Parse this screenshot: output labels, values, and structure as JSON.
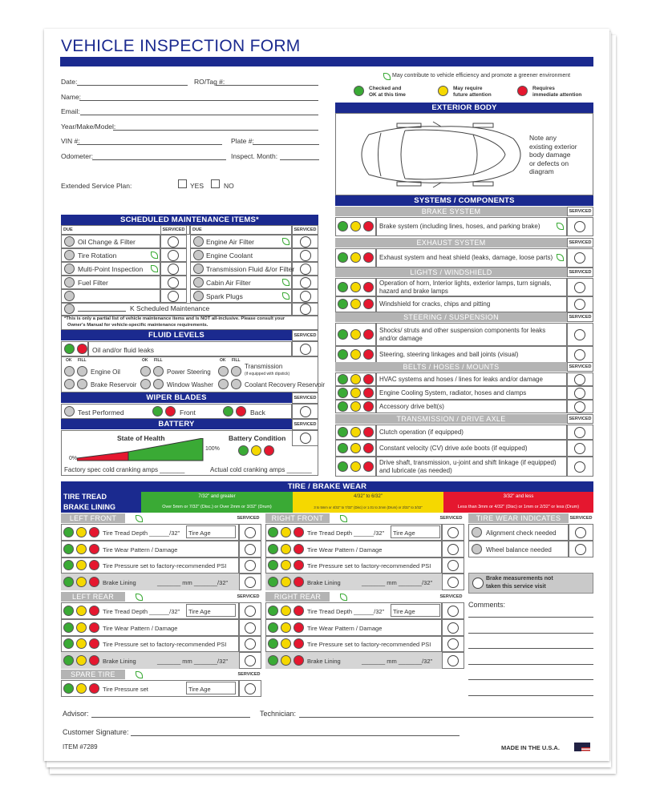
{
  "title": "VEHICLE INSPECTION FORM",
  "colors": {
    "navy": "#1b2a8f",
    "green": "#3aaa35",
    "yellow": "#f5d800",
    "red": "#e5172f",
    "gray": "#c8c8c8"
  },
  "fields": {
    "date": "Date:",
    "ro_tag": "RO/Tag #:",
    "name": "Name:",
    "email": "Email:",
    "year_make_model": "Year/Make/Model:",
    "vin": "VIN #:",
    "plate": "Plate #:",
    "odometer": "Odometer:",
    "inspect_month": "Inspect. Month:",
    "extended_plan": "Extended Service Plan:",
    "yes": "YES",
    "no": "NO"
  },
  "legend": {
    "leaf_note": "May contribute to vehicle efficiency and promote a greener environment",
    "green": [
      "Checked and",
      "OK at this time"
    ],
    "yellow": [
      "May require",
      "future attention"
    ],
    "red": [
      "Requires",
      "immediate attention"
    ]
  },
  "exterior": {
    "header": "EXTERIOR BODY",
    "note": [
      "Note any",
      "existing exterior",
      "body damage",
      "or defects on",
      "diagram"
    ]
  },
  "common": {
    "due": "DUE",
    "serviced": "SERVICED",
    "ok": "OK",
    "fill": "FILL"
  },
  "scheduled": {
    "header": "SCHEDULED MAINTENANCE ITEMS*",
    "left": [
      {
        "label": "Oil Change & Filter",
        "leaf": false
      },
      {
        "label": "Tire Rotation",
        "leaf": true
      },
      {
        "label": "Multi-Point Inspection",
        "leaf": true
      },
      {
        "label": "Fuel Filter",
        "leaf": false
      },
      {
        "label": "",
        "leaf": false
      }
    ],
    "right": [
      {
        "label": "Engine Air Filter",
        "leaf": true
      },
      {
        "label": "Engine Coolant",
        "leaf": false
      },
      {
        "label": "Transmission Fluid &/or Filter",
        "leaf": false
      },
      {
        "label": "Cabin Air Filter",
        "leaf": true
      },
      {
        "label": "Spark Plugs",
        "leaf": true
      }
    ],
    "k_row": "K Scheduled Maintenance",
    "note": [
      "*This is only a partial list of vehicle maintenance items and is NOT all-inclusive. Please consult your",
      "Owner's Manual for vehicle-specific maintenance requirements."
    ]
  },
  "fluid": {
    "header": "FLUID LEVELS",
    "leaks": "Oil and/or fluid leaks",
    "items": [
      "Engine Oil",
      "Brake Reservoir",
      "Power Steering",
      "Window Washer",
      "Transmission",
      "Coolant Recovery Reservoir"
    ],
    "transmission_note": "(if equipped with dipstick)"
  },
  "wiper": {
    "header": "WIPER BLADES",
    "test": "Test Performed",
    "front": "Front",
    "back": "Back"
  },
  "battery": {
    "header": "BATTERY",
    "state_of_health": "State of Health",
    "zero": "0%",
    "hundred": "100%",
    "condition": "Battery Condition",
    "factory": "Factory spec cold cranking amps _______",
    "actual": "Actual cold cranking amps _______"
  },
  "systems": {
    "header": "SYSTEMS / COMPONENTS",
    "groups": [
      {
        "name": "BRAKE SYSTEM",
        "items": [
          {
            "label": [
              "Brake system (including lines, hoses, and parking brake)"
            ],
            "leaf": true
          }
        ]
      },
      {
        "name": "EXHAUST SYSTEM",
        "items": [
          {
            "label": [
              "Exhaust system and heat shield (leaks, damage, loose parts)"
            ],
            "leaf": true
          }
        ]
      },
      {
        "name": "LIGHTS / WINDSHIELD",
        "items": [
          {
            "label": [
              "Operation of horn, Interior lights, exterior lamps, turn signals,",
              "hazard and brake lamps"
            ]
          },
          {
            "label": [
              "Windshield for cracks, chips and pitting"
            ]
          }
        ]
      },
      {
        "name": "STEERING / SUSPENSION",
        "items": [
          {
            "label": [
              "Shocks/ struts and other suspension components for leaks",
              "and/or damage"
            ]
          },
          {
            "label": [
              "Steering, steering linkages and ball joints (visual)"
            ]
          }
        ]
      },
      {
        "name": "BELTS / HOSES / MOUNTS",
        "items": [
          {
            "label": [
              "HVAC systems and hoses / lines for leaks and/or damage"
            ]
          },
          {
            "label": [
              "Engine Cooling System, radiator, hoses and clamps"
            ]
          },
          {
            "label": [
              "Accessory drive belt(s)"
            ]
          }
        ]
      },
      {
        "name": "TRANSMISSION / DRIVE AXLE",
        "items": [
          {
            "label": [
              "Clutch operation (if equipped)"
            ]
          },
          {
            "label": [
              "Constant velocity (CV) drive axle boots (if equipped)"
            ]
          },
          {
            "label": [
              "Drive shaft, transmission, u-joint and shift linkage (if equipped)",
              "and lubricate (as needed)"
            ]
          }
        ]
      }
    ]
  },
  "tire": {
    "header": "TIRE / BRAKE WEAR",
    "tread_label": "TIRE TREAD",
    "lining_label": "BRAKE LINING",
    "tread": [
      "7/32\" and greater",
      "4/32\" to 6/32\"",
      "3/32\" and less"
    ],
    "lining": [
      "Over 5mm or 7/32\" (Disc.) or Over 2mm or 3/32\" (Drum)",
      "3 to 5mm or 4/32\" to 7/32\" (Disc) or 1.01 to 2mm (Drum) or 2/32\" to 3/32\"",
      "Less than 3mm or 4/32\" (Disc) or 1mm or 2/32\" or less (Drum)"
    ],
    "positions": [
      "LEFT FRONT",
      "RIGHT FRONT",
      "LEFT REAR",
      "RIGHT REAR"
    ],
    "rows": {
      "depth": "Tire Tread Depth ______/32\"",
      "age": "Tire Age",
      "pattern": "Tire Wear Pattern / Damage",
      "pressure": "Tire Pressure set to factory-recommended PSI",
      "lining": "Brake Lining",
      "mm": "_______ mm _______/32\""
    },
    "spare": {
      "name": "SPARE TIRE",
      "pressure": "Tire Pressure set",
      "age": "Tire Age"
    },
    "indicators": {
      "name": "TIRE WEAR INDICATES",
      "items": [
        "Alignment check needed",
        "Wheel balance needed"
      ]
    },
    "brake_note": [
      "Brake measurements not",
      "taken this service visit"
    ]
  },
  "comments": "Comments:",
  "footer": {
    "advisor": "Advisor:",
    "technician": "Technician:",
    "signature": "Customer Signature:",
    "item": "ITEM #7289",
    "made_in": "MADE IN THE U.S.A."
  }
}
